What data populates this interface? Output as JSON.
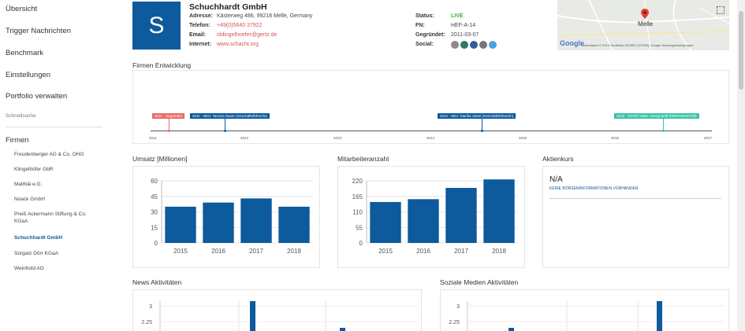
{
  "sidebar": {
    "items": [
      {
        "label": "Übersicht"
      },
      {
        "label": "Trigger Nachrichten"
      },
      {
        "label": "Benchmark"
      },
      {
        "label": "Einstellungen"
      },
      {
        "label": "Portfolio verwalten"
      }
    ],
    "quick_search": "Schnellsuche",
    "firms_heading": "Firmen",
    "firms": [
      {
        "label": "Freudenberger AG & Co. OHG",
        "active": false
      },
      {
        "label": "Klingelhöfer GbR",
        "active": false
      },
      {
        "label": "Matthäi e.G.",
        "active": false
      },
      {
        "label": "Noack GmbH",
        "active": false
      },
      {
        "label": "Preiß Ackermann Stiftung & Co. KGaA",
        "active": false
      },
      {
        "label": "Schuchhardt GmbH",
        "active": true
      },
      {
        "label": "Sorgatz Dörr KGaA",
        "active": false
      },
      {
        "label": "Weinhold AG",
        "active": false
      }
    ]
  },
  "company": {
    "logo_letter": "S",
    "name": "Schuchhardt GmbH",
    "address_label": "Adresse:",
    "address": "Kästerweg 486, 99218 Melle, Germany",
    "phone_label": "Telefon:",
    "phone": "+49(0)5640 37922",
    "email_label": "Email:",
    "email": "oldingelhoefer@gertz.de",
    "web_label": "Internet:",
    "web": "www.schacht.org",
    "status_label": "Status:",
    "status": "LIVE",
    "fn_label": "FN:",
    "fn": "HEF-A-14",
    "founded_label": "Gegründet:",
    "founded": "2011-03-07",
    "social_label": "Social:",
    "social_icons": [
      {
        "name": "xing-icon",
        "color": "#8a8a8a"
      },
      {
        "name": "share-icon",
        "color": "#2c7a6a"
      },
      {
        "name": "facebook-icon",
        "color": "#3b5998"
      },
      {
        "name": "youtube-icon",
        "color": "#777777"
      },
      {
        "name": "twitter-icon",
        "color": "#4aa3df"
      }
    ]
  },
  "map": {
    "city": "Melle",
    "google": "Google",
    "attribution": "Kartendaten © 2019 GeoBasis-DE/BKG (©2009), Google   Nutzungsbedingungen"
  },
  "timeline": {
    "title": "Firmen Entwicklung",
    "years": [
      "2011",
      "2012",
      "2013",
      "2014",
      "2015",
      "2016",
      "2017"
    ],
    "events": [
      {
        "text": "2011 - Gegründet",
        "color": "#e86a6a"
      },
      {
        "text": "2011 - NEU: Tamara Naser (Geschäftsführer/in)",
        "color": "#0d5a9c"
      },
      {
        "text": "2014 - NEU: Marika Jülvel (Geschäftsführer/in)",
        "color": "#0d5a9c"
      },
      {
        "text": "2016 - START: Marc Hornig-Wulf (PROKURIST/IN)",
        "color": "#3ac3a8"
      }
    ]
  },
  "umsatz": {
    "title": "Umsatz [Millionen]",
    "chart_data": {
      "type": "bar",
      "categories": [
        "2015",
        "2016",
        "2017",
        "2018"
      ],
      "values": [
        35,
        39,
        43,
        35
      ],
      "ylim": [
        0,
        60
      ],
      "yticks": [
        "0",
        "15",
        "30",
        "45",
        "60"
      ],
      "color": "#0d5a9c"
    }
  },
  "mitarbeiter": {
    "title": "Mitarbeiteranzahl",
    "chart_data": {
      "type": "bar",
      "categories": [
        "2015",
        "2016",
        "2017",
        "2018"
      ],
      "values": [
        145,
        155,
        195,
        225
      ],
      "ylim": [
        0,
        220
      ],
      "yticks": [
        "0",
        "55",
        "110",
        "165",
        "220"
      ],
      "color": "#0d5a9c"
    }
  },
  "aktien": {
    "title": "Aktienkurs",
    "value": "N/A",
    "note": "KEINE BÖRSENINFORMATIONEN VORHANDEN"
  },
  "news": {
    "title": "News Aktivitäten",
    "yticks": [
      "3",
      "2.25"
    ]
  },
  "social": {
    "title": "Soziale Medien Aktivitäten",
    "yticks": [
      "3",
      "2.25"
    ]
  }
}
